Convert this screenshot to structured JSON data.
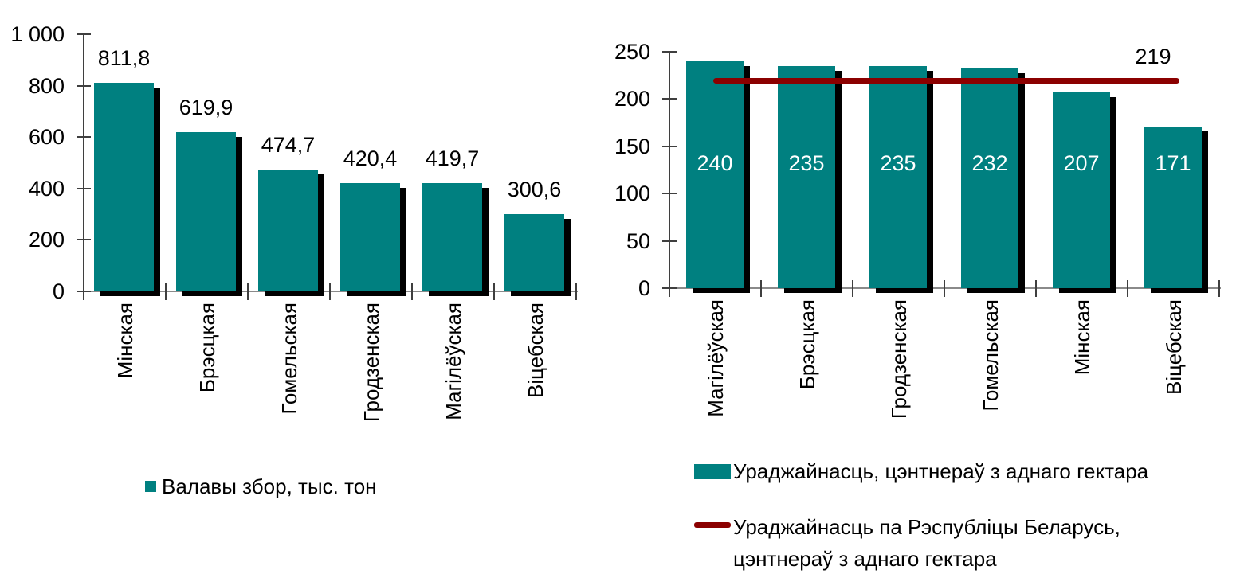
{
  "chart_data": [
    {
      "type": "bar",
      "title": "",
      "categories": [
        "Мінская",
        "Брэсцкая",
        "Гомельская",
        "Гродзенская",
        "Магілёўская",
        "Віцебская"
      ],
      "values": [
        811.8,
        619.9,
        474.7,
        420.4,
        419.7,
        300.6
      ],
      "value_labels": [
        "811,8",
        "619,9",
        "474,7",
        "420,4",
        "419,7",
        "300,6"
      ],
      "xlabel": "",
      "ylabel": "",
      "ylim": [
        0,
        1000
      ],
      "y_ticks": [
        0,
        200,
        400,
        600,
        800,
        1000
      ],
      "y_tick_labels": [
        "0",
        "200",
        "400",
        "600",
        "800",
        "1 000"
      ],
      "grid": false,
      "bar_color": "#008080",
      "shadow_color": "#000000",
      "value_label_position": "above",
      "legend_position": "bottom",
      "legend": [
        {
          "label": "Валавы збор, тыс. тон",
          "swatch": "square",
          "color": "#008080"
        }
      ]
    },
    {
      "type": "bar",
      "title": "",
      "categories": [
        "Магілёўская",
        "Брэсцкая",
        "Гродзенская",
        "Гомельская",
        "Мінская",
        "Віцебская"
      ],
      "values": [
        240,
        235,
        235,
        232,
        207,
        171
      ],
      "value_labels": [
        "240",
        "235",
        "235",
        "232",
        "207",
        "171"
      ],
      "xlabel": "",
      "ylabel": "",
      "ylim": [
        0,
        250
      ],
      "y_ticks": [
        0,
        50,
        100,
        150,
        200,
        250
      ],
      "y_tick_labels": [
        "0",
        "50",
        "100",
        "150",
        "200",
        "250"
      ],
      "grid": false,
      "bar_color": "#008080",
      "shadow_color": "#000000",
      "value_label_position": "inside",
      "value_label_color": "#ffffff",
      "legend_position": "bottom",
      "series": [
        {
          "name": "Ураджайнасць, цэнтнераў з аднаго гектара",
          "type": "bar",
          "color": "#008080",
          "values": [
            240,
            235,
            235,
            232,
            207,
            171
          ]
        },
        {
          "name": "Ураджайнасць па Рэспубліцы Беларусь, цэнтнераў з аднаго гектара",
          "name_lines": [
            "Ураджайнасць па Рэспубліцы Беларусь,",
            "цэнтнераў з аднаго гектара"
          ],
          "type": "hline",
          "value": 219,
          "label": "219",
          "color": "#8B0000"
        }
      ]
    }
  ]
}
